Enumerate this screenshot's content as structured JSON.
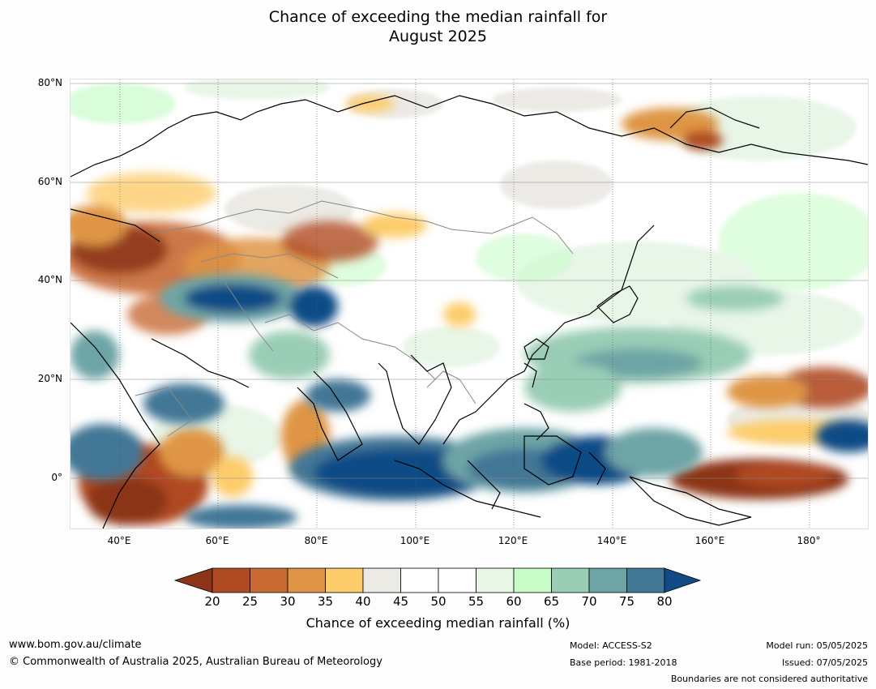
{
  "title": {
    "line1": "Chance of exceeding the median rainfall for",
    "line2": "August 2025"
  },
  "map": {
    "projection": "equirectangular",
    "lon_range": [
      30,
      192
    ],
    "lat_range": [
      -10,
      81
    ],
    "lat_labels": [
      "80°N",
      "60°N",
      "40°N",
      "20°N",
      "0°"
    ],
    "lon_labels": [
      "40°E",
      "60°E",
      "80°E",
      "100°E",
      "120°E",
      "140°E",
      "160°E",
      "180°"
    ],
    "gridlines": true
  },
  "colorbar": {
    "ticks": [
      "20",
      "25",
      "30",
      "35",
      "40",
      "45",
      "50",
      "55",
      "60",
      "65",
      "70",
      "75",
      "80"
    ],
    "colors": [
      "#8c3418",
      "#b04a23",
      "#c96a33",
      "#df9545",
      "#fdcc6a",
      "#eceae5",
      "#ffffff",
      "#ffffff",
      "#e8f6e8",
      "#c9fcc9",
      "#9acdb5",
      "#6da4a6",
      "#437796",
      "#114b86"
    ],
    "label": "Chance of exceeding median rainfall (%)"
  },
  "footer": {
    "url": "www.bom.gov.au/climate",
    "copyright": "© Commonwealth of Australia 2025, Australian Bureau of Meteorology",
    "model": "Model: ACCESS-S2",
    "base_period": "Base period: 1981-2018",
    "model_run": "Model run: 05/05/2025",
    "issued": "Issued: 07/05/2025",
    "disclaimer": "Boundaries are not considered authoritative"
  }
}
